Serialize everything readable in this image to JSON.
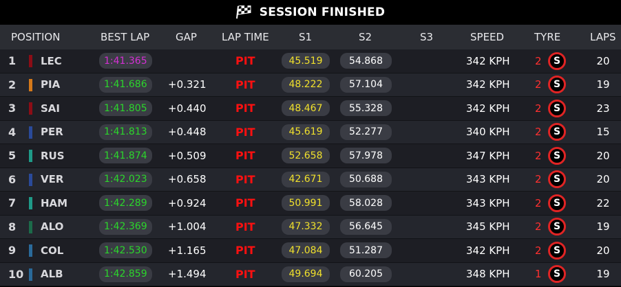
{
  "header": {
    "title": "SESSION FINISHED",
    "icon": "checkered-flag-icon"
  },
  "columns": {
    "position": "POSITION",
    "best_lap": "BEST LAP",
    "gap": "GAP",
    "lap_time": "LAP TIME",
    "s1": "S1",
    "s2": "S2",
    "s3": "S3",
    "speed": "SPEED",
    "tyre": "TYRE",
    "laps": "LAPS"
  },
  "colors": {
    "fastest_lap": "#d42fd4",
    "best_lap": "#2bd62b",
    "pit": "#ff1010",
    "sector1": "#f0e02c",
    "tyre_soft": "#e02424"
  },
  "rows": [
    {
      "pos": "1",
      "driver": "LEC",
      "team_color": "#8c0d16",
      "best_lap": "1:41.365",
      "fastest": true,
      "gap": "",
      "lap_time": "PIT",
      "s1": "45.519",
      "s2": "54.868",
      "s3": "",
      "speed": "342 KPH",
      "tyre_age": "2",
      "tyre": "S",
      "laps": "20"
    },
    {
      "pos": "2",
      "driver": "PIA",
      "team_color": "#d5791a",
      "best_lap": "1:41.686",
      "fastest": false,
      "gap": "+0.321",
      "lap_time": "PIT",
      "s1": "48.222",
      "s2": "57.104",
      "s3": "",
      "speed": "342 KPH",
      "tyre_age": "2",
      "tyre": "S",
      "laps": "19"
    },
    {
      "pos": "3",
      "driver": "SAI",
      "team_color": "#8c0d16",
      "best_lap": "1:41.805",
      "fastest": false,
      "gap": "+0.440",
      "lap_time": "PIT",
      "s1": "48.467",
      "s2": "55.328",
      "s3": "",
      "speed": "342 KPH",
      "tyre_age": "2",
      "tyre": "S",
      "laps": "23"
    },
    {
      "pos": "4",
      "driver": "PER",
      "team_color": "#2a4a9a",
      "best_lap": "1:41.813",
      "fastest": false,
      "gap": "+0.448",
      "lap_time": "PIT",
      "s1": "45.619",
      "s2": "52.277",
      "s3": "",
      "speed": "340 KPH",
      "tyre_age": "2",
      "tyre": "S",
      "laps": "15"
    },
    {
      "pos": "5",
      "driver": "RUS",
      "team_color": "#1f9a88",
      "best_lap": "1:41.874",
      "fastest": false,
      "gap": "+0.509",
      "lap_time": "PIT",
      "s1": "52.658",
      "s2": "57.978",
      "s3": "",
      "speed": "347 KPH",
      "tyre_age": "2",
      "tyre": "S",
      "laps": "20"
    },
    {
      "pos": "6",
      "driver": "VER",
      "team_color": "#2a4a9a",
      "best_lap": "1:42.023",
      "fastest": false,
      "gap": "+0.658",
      "lap_time": "PIT",
      "s1": "42.671",
      "s2": "50.688",
      "s3": "",
      "speed": "343 KPH",
      "tyre_age": "2",
      "tyre": "S",
      "laps": "20"
    },
    {
      "pos": "7",
      "driver": "HAM",
      "team_color": "#1f9a88",
      "best_lap": "1:42.289",
      "fastest": false,
      "gap": "+0.924",
      "lap_time": "PIT",
      "s1": "50.991",
      "s2": "58.028",
      "s3": "",
      "speed": "343 KPH",
      "tyre_age": "2",
      "tyre": "S",
      "laps": "22"
    },
    {
      "pos": "8",
      "driver": "ALO",
      "team_color": "#1c6b4a",
      "best_lap": "1:42.369",
      "fastest": false,
      "gap": "+1.004",
      "lap_time": "PIT",
      "s1": "47.332",
      "s2": "56.645",
      "s3": "",
      "speed": "345 KPH",
      "tyre_age": "2",
      "tyre": "S",
      "laps": "19"
    },
    {
      "pos": "9",
      "driver": "COL",
      "team_color": "#2a6a9a",
      "best_lap": "1:42.530",
      "fastest": false,
      "gap": "+1.165",
      "lap_time": "PIT",
      "s1": "47.084",
      "s2": "51.287",
      "s3": "",
      "speed": "342 KPH",
      "tyre_age": "2",
      "tyre": "S",
      "laps": "20"
    },
    {
      "pos": "10",
      "driver": "ALB",
      "team_color": "#2a6a9a",
      "best_lap": "1:42.859",
      "fastest": false,
      "gap": "+1.494",
      "lap_time": "PIT",
      "s1": "49.694",
      "s2": "60.205",
      "s3": "",
      "speed": "348 KPH",
      "tyre_age": "1",
      "tyre": "S",
      "laps": "19"
    }
  ]
}
